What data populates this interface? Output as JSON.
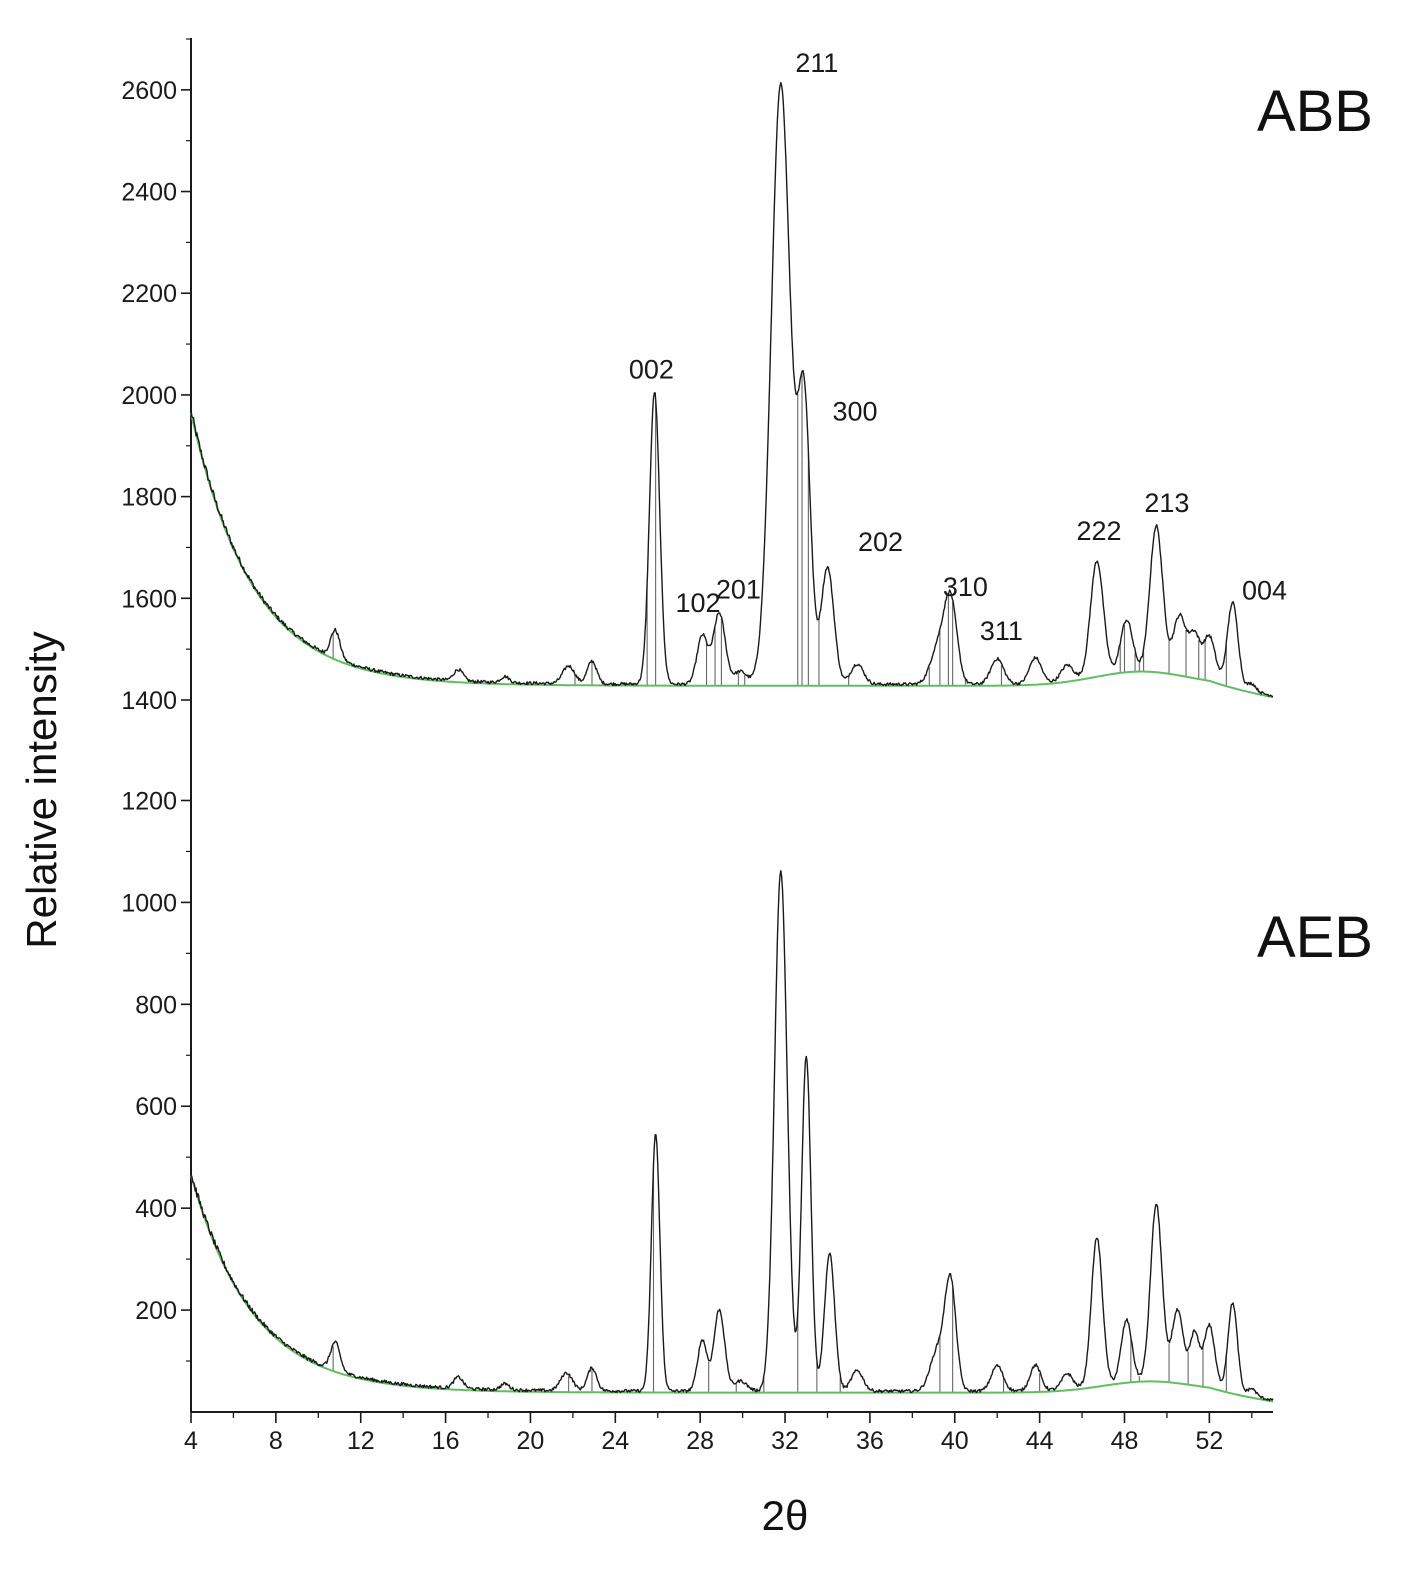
{
  "chart_data": {
    "type": "line",
    "title": "",
    "xlabel": "2θ",
    "ylabel": "Relative intensity",
    "xlim": [
      4,
      55
    ],
    "x_ticks": [
      4,
      8,
      12,
      16,
      20,
      24,
      28,
      32,
      36,
      40,
      44,
      48,
      52
    ],
    "y_tick_labels": [
      "2600",
      "2400",
      "2200",
      "2000",
      "1800",
      "1600",
      "1400",
      "1200",
      "1000",
      "800",
      "600",
      "400",
      "200"
    ],
    "colors": {
      "pattern": "#1a1a1a",
      "background_fit": "#5fbf5f",
      "peak_bars": "#555555"
    },
    "panels": [
      {
        "name": "ABB",
        "ylim": [
          1400,
          2700
        ],
        "background": {
          "start": 1965,
          "end": 1428,
          "decay": 2.9,
          "bump_center": 48.8,
          "bump_height": 28,
          "bump_width": 2.2,
          "end_value": 1405
        },
        "peaks": [
          {
            "x": 10.8,
            "h": 55,
            "w": 0.22
          },
          {
            "x": 16.6,
            "h": 22,
            "w": 0.22
          },
          {
            "x": 18.8,
            "h": 12,
            "w": 0.2
          },
          {
            "x": 21.8,
            "h": 35,
            "w": 0.28
          },
          {
            "x": 22.9,
            "h": 45,
            "w": 0.22
          },
          {
            "x": 25.85,
            "h": 575,
            "w": 0.24
          },
          {
            "x": 28.1,
            "h": 95,
            "w": 0.25
          },
          {
            "x": 28.9,
            "h": 140,
            "w": 0.28
          },
          {
            "x": 29.9,
            "h": 25,
            "w": 0.3
          },
          {
            "x": 31.8,
            "h": 1180,
            "w": 0.45
          },
          {
            "x": 32.9,
            "h": 545,
            "w": 0.3
          },
          {
            "x": 34.0,
            "h": 230,
            "w": 0.3
          },
          {
            "x": 35.4,
            "h": 40,
            "w": 0.3
          },
          {
            "x": 39.2,
            "h": 70,
            "w": 0.35
          },
          {
            "x": 39.8,
            "h": 165,
            "w": 0.3
          },
          {
            "x": 42.0,
            "h": 50,
            "w": 0.3
          },
          {
            "x": 43.8,
            "h": 50,
            "w": 0.28
          },
          {
            "x": 45.3,
            "h": 30,
            "w": 0.28
          },
          {
            "x": 46.7,
            "h": 225,
            "w": 0.3
          },
          {
            "x": 48.1,
            "h": 100,
            "w": 0.28
          },
          {
            "x": 49.5,
            "h": 285,
            "w": 0.3
          },
          {
            "x": 50.6,
            "h": 115,
            "w": 0.3
          },
          {
            "x": 51.3,
            "h": 80,
            "w": 0.25
          },
          {
            "x": 52.0,
            "h": 85,
            "w": 0.28
          },
          {
            "x": 53.1,
            "h": 165,
            "w": 0.25
          },
          {
            "x": 54.0,
            "h": 15,
            "w": 0.2
          }
        ],
        "peak_labels": [
          {
            "text": "211",
            "x": 33.5,
            "y": 2635
          },
          {
            "text": "002",
            "x": 25.7,
            "y": 2032
          },
          {
            "text": "300",
            "x": 35.3,
            "y": 1950
          },
          {
            "text": "202",
            "x": 36.5,
            "y": 1693
          },
          {
            "text": "201",
            "x": 29.8,
            "y": 1600
          },
          {
            "text": "102",
            "x": 27.9,
            "y": 1573
          },
          {
            "text": "310",
            "x": 40.5,
            "y": 1605
          },
          {
            "text": "311",
            "x": 42.2,
            "y": 1518
          },
          {
            "text": "222",
            "x": 46.8,
            "y": 1715
          },
          {
            "text": "213",
            "x": 50.0,
            "y": 1770
          },
          {
            "text": "004",
            "x": 54.6,
            "y": 1598
          }
        ],
        "peak_bar_positions": [
          10.7,
          21.0,
          22.1,
          22.9,
          25.5,
          25.9,
          28.3,
          28.7,
          29.0,
          29.8,
          30.1,
          32.6,
          32.8,
          33.1,
          33.6,
          35.0,
          38.8,
          39.3,
          39.7,
          39.9,
          40.5,
          42.2,
          47.8,
          48.0,
          48.5,
          48.7,
          48.9,
          50.1,
          50.9,
          51.5,
          51.8,
          52.8
        ]
      },
      {
        "name": "AEB",
        "ylim": [
          0,
          1250
        ],
        "background": {
          "start": 465,
          "end": 38,
          "decay": 2.9,
          "bump_center": 49.2,
          "bump_height": 22,
          "bump_width": 2.2,
          "end_value": 20
        },
        "peaks": [
          {
            "x": 10.8,
            "h": 55,
            "w": 0.22
          },
          {
            "x": 16.6,
            "h": 22,
            "w": 0.22
          },
          {
            "x": 18.8,
            "h": 12,
            "w": 0.2
          },
          {
            "x": 21.7,
            "h": 35,
            "w": 0.28
          },
          {
            "x": 22.9,
            "h": 45,
            "w": 0.22
          },
          {
            "x": 25.9,
            "h": 505,
            "w": 0.2
          },
          {
            "x": 28.1,
            "h": 100,
            "w": 0.22
          },
          {
            "x": 28.9,
            "h": 160,
            "w": 0.25
          },
          {
            "x": 29.9,
            "h": 20,
            "w": 0.3
          },
          {
            "x": 31.8,
            "h": 1020,
            "w": 0.3
          },
          {
            "x": 33.0,
            "h": 658,
            "w": 0.22
          },
          {
            "x": 34.1,
            "h": 270,
            "w": 0.24
          },
          {
            "x": 35.4,
            "h": 40,
            "w": 0.28
          },
          {
            "x": 39.2,
            "h": 80,
            "w": 0.35
          },
          {
            "x": 39.8,
            "h": 210,
            "w": 0.26
          },
          {
            "x": 42.0,
            "h": 50,
            "w": 0.28
          },
          {
            "x": 43.8,
            "h": 50,
            "w": 0.25
          },
          {
            "x": 45.3,
            "h": 30,
            "w": 0.25
          },
          {
            "x": 46.7,
            "h": 290,
            "w": 0.26
          },
          {
            "x": 48.1,
            "h": 120,
            "w": 0.25
          },
          {
            "x": 49.5,
            "h": 345,
            "w": 0.27
          },
          {
            "x": 50.5,
            "h": 140,
            "w": 0.27
          },
          {
            "x": 51.3,
            "h": 100,
            "w": 0.22
          },
          {
            "x": 52.0,
            "h": 120,
            "w": 0.25
          },
          {
            "x": 53.1,
            "h": 175,
            "w": 0.22
          },
          {
            "x": 54.0,
            "h": 15,
            "w": 0.2
          }
        ],
        "peak_labels": [],
        "peak_bar_positions": [
          10.7,
          21.8,
          22.9,
          25.8,
          28.4,
          29.7,
          30.6,
          30.8,
          31.0,
          32.6,
          33.5,
          34.6,
          39.3,
          39.9,
          42.3,
          44.0,
          48.3,
          48.7,
          50.1,
          51.0,
          51.7,
          52.8
        ]
      }
    ]
  }
}
